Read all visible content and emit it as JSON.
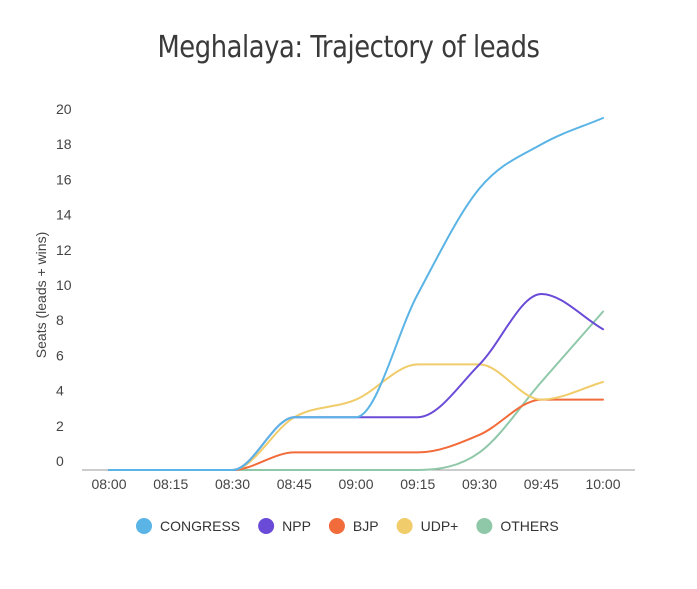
{
  "chart_data": {
    "type": "line",
    "title": "Meghalaya: Trajectory of leads",
    "xlabel": "",
    "ylabel": "Seats (leads + wins)",
    "categories": [
      "08:00",
      "08:15",
      "08:30",
      "08:45",
      "09:00",
      "09:15",
      "09:30",
      "09:45",
      "10:00"
    ],
    "yticks": [
      0,
      2,
      4,
      6,
      8,
      10,
      12,
      14,
      16,
      18,
      20
    ],
    "ylim": [
      0,
      20
    ],
    "grid": false,
    "legend": "bottom",
    "series": [
      {
        "name": "CONGRESS",
        "color": "#5ab4e5",
        "values": [
          0,
          0,
          0,
          3,
          3,
          10,
          16,
          18.5,
          20
        ]
      },
      {
        "name": "NPP",
        "color": "#6a4bd8",
        "values": [
          0,
          0,
          0,
          3,
          3,
          3,
          6,
          10,
          8
        ]
      },
      {
        "name": "BJP",
        "color": "#f26b3a",
        "values": [
          0,
          0,
          0,
          1,
          1,
          1,
          2,
          4,
          4
        ]
      },
      {
        "name": "UDP+",
        "color": "#f0cc6a",
        "values": [
          0,
          0,
          0,
          3,
          4,
          6,
          6,
          4,
          5
        ]
      },
      {
        "name": "OTHERS",
        "color": "#8fc8a8",
        "values": [
          0,
          0,
          0,
          0,
          0,
          0,
          1,
          5,
          9
        ]
      }
    ]
  }
}
